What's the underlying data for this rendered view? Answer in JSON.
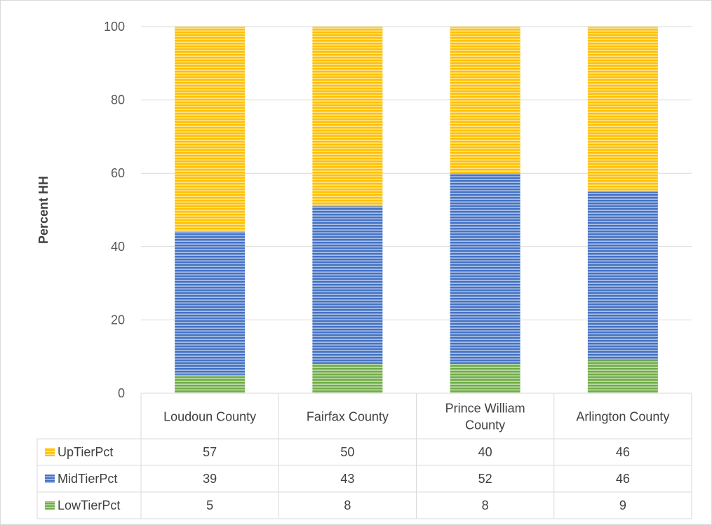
{
  "chart_data": {
    "type": "bar",
    "stacked": true,
    "categories": [
      "Loudoun County",
      "Fairfax County",
      "Prince William County",
      "Arlington County"
    ],
    "series": [
      {
        "name": "LowTierPct",
        "values": [
          5,
          8,
          8,
          9
        ],
        "color": "#70ad47"
      },
      {
        "name": "MidTierPct",
        "values": [
          39,
          43,
          52,
          46
        ],
        "color": "#4472c4"
      },
      {
        "name": "UpTierPct",
        "values": [
          57,
          50,
          40,
          46
        ],
        "color": "#ffc000"
      }
    ],
    "table_row_order": [
      "UpTierPct",
      "MidTierPct",
      "LowTierPct"
    ],
    "title": "",
    "xlabel": "",
    "ylabel": "Percent HH",
    "ylim": [
      0,
      100
    ],
    "yticks": [
      0,
      20,
      40,
      60,
      80,
      100
    ],
    "grid": true,
    "legend": "data-table",
    "bar_fill": "horizontal-stripes"
  }
}
